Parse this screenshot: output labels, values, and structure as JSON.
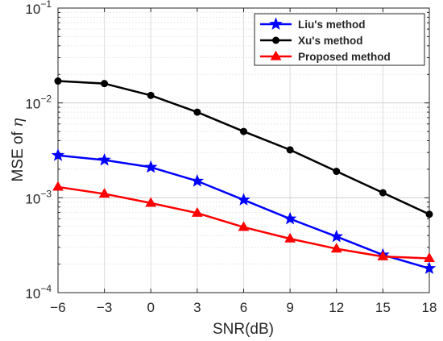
{
  "chart_data": {
    "type": "line",
    "title": "",
    "xlabel": "SNR(dB)",
    "ylabel_prefix": "MSE of ",
    "ylabel_symbol": "η",
    "y_scale": "log",
    "ylim": [
      0.0001,
      0.1
    ],
    "xlim": [
      -6,
      18
    ],
    "grid": true,
    "legend_position": "top-right",
    "x_ticks": [
      {
        "value": -6,
        "label": "−6"
      },
      {
        "value": -3,
        "label": "−3"
      },
      {
        "value": 0,
        "label": "0"
      },
      {
        "value": 3,
        "label": "3"
      },
      {
        "value": 6,
        "label": "6"
      },
      {
        "value": 9,
        "label": "9"
      },
      {
        "value": 12,
        "label": "12"
      },
      {
        "value": 15,
        "label": "15"
      },
      {
        "value": 18,
        "label": "18"
      }
    ],
    "y_ticks": [
      {
        "value": 0.0001,
        "base": "10",
        "exp": "−4"
      },
      {
        "value": 0.001,
        "base": "10",
        "exp": "−3"
      },
      {
        "value": 0.01,
        "base": "10",
        "exp": "−2"
      },
      {
        "value": 0.1,
        "base": "10",
        "exp": "−1"
      }
    ],
    "x": [
      -6,
      -3,
      0,
      3,
      6,
      9,
      12,
      15,
      18
    ],
    "series": [
      {
        "name": "Liu's method",
        "color": "#0000ff",
        "marker": "star",
        "values": [
          0.0028,
          0.0025,
          0.0021,
          0.0015,
          0.00095,
          0.0006,
          0.00039,
          0.00025,
          0.00018
        ]
      },
      {
        "name": "Xu's method",
        "color": "#000000",
        "marker": "circle",
        "values": [
          0.017,
          0.016,
          0.012,
          0.008,
          0.005,
          0.0032,
          0.0019,
          0.00113,
          0.00067
        ]
      },
      {
        "name": "Proposed method",
        "color": "#ff0000",
        "marker": "triangle",
        "values": [
          0.0013,
          0.0011,
          0.00088,
          0.00069,
          0.00049,
          0.00037,
          0.00029,
          0.00024,
          0.00023
        ]
      }
    ]
  }
}
